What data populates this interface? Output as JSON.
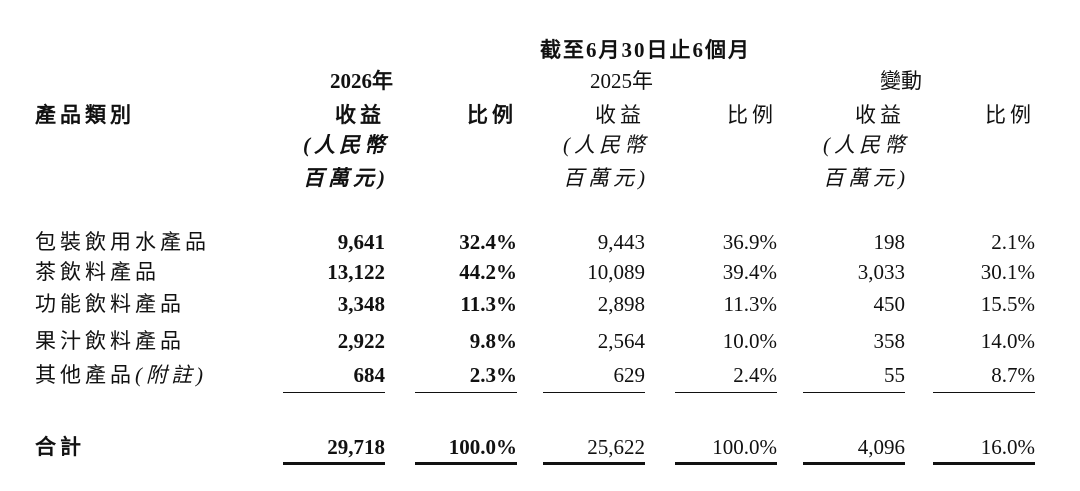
{
  "header": {
    "period": "截至6月30日止6個月",
    "row_header": "產品類別",
    "groups": [
      "2026年",
      "2025年",
      "變動"
    ],
    "columns": [
      {
        "name": "收益",
        "unit": [
          "(人民幣",
          "百萬元)"
        ]
      },
      {
        "name": "比例"
      },
      {
        "name": "收益",
        "unit": [
          "(人民幣",
          "百萬元)"
        ]
      },
      {
        "name": "比例"
      },
      {
        "name": "收益",
        "unit": [
          "(人民幣",
          "百萬元)"
        ]
      },
      {
        "name": "比例"
      }
    ]
  },
  "rows": [
    {
      "label": "包裝飲用水產品",
      "cells": [
        "9,641",
        "32.4%",
        "9,443",
        "36.9%",
        "198",
        "2.1%"
      ]
    },
    {
      "label": "茶飲料產品",
      "cells": [
        "13,122",
        "44.2%",
        "10,089",
        "39.4%",
        "3,033",
        "30.1%"
      ]
    },
    {
      "label": "功能飲料產品",
      "cells": [
        "3,348",
        "11.3%",
        "2,898",
        "11.3%",
        "450",
        "15.5%"
      ]
    },
    {
      "label": "果汁飲料產品",
      "cells": [
        "2,922",
        "9.8%",
        "2,564",
        "10.0%",
        "358",
        "14.0%"
      ]
    },
    {
      "label": "其他產品",
      "label_note": "(附註)",
      "cells": [
        "684",
        "2.3%",
        "629",
        "2.4%",
        "55",
        "8.7%"
      ]
    }
  ],
  "total": {
    "label": "合計",
    "cells": [
      "29,718",
      "100.0%",
      "25,622",
      "100.0%",
      "4,096",
      "16.0%"
    ]
  }
}
